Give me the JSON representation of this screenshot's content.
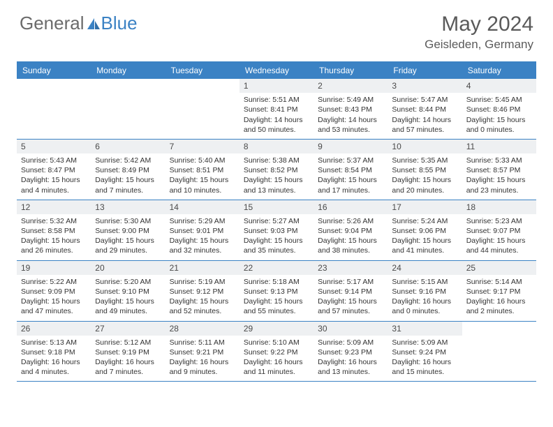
{
  "brand": {
    "part1": "General",
    "part2": "Blue"
  },
  "title": "May 2024",
  "location": "Geisleden, Germany",
  "colors": {
    "accent": "#3b82c4",
    "dayrow_bg": "#eef0f2",
    "text": "#333333",
    "header_text": "#5a5a5a"
  },
  "day_names": [
    "Sunday",
    "Monday",
    "Tuesday",
    "Wednesday",
    "Thursday",
    "Friday",
    "Saturday"
  ],
  "weeks": [
    [
      null,
      null,
      null,
      {
        "n": "1",
        "rise": "5:51 AM",
        "set": "8:41 PM",
        "dl": "14 hours and 50 minutes."
      },
      {
        "n": "2",
        "rise": "5:49 AM",
        "set": "8:43 PM",
        "dl": "14 hours and 53 minutes."
      },
      {
        "n": "3",
        "rise": "5:47 AM",
        "set": "8:44 PM",
        "dl": "14 hours and 57 minutes."
      },
      {
        "n": "4",
        "rise": "5:45 AM",
        "set": "8:46 PM",
        "dl": "15 hours and 0 minutes."
      }
    ],
    [
      {
        "n": "5",
        "rise": "5:43 AM",
        "set": "8:47 PM",
        "dl": "15 hours and 4 minutes."
      },
      {
        "n": "6",
        "rise": "5:42 AM",
        "set": "8:49 PM",
        "dl": "15 hours and 7 minutes."
      },
      {
        "n": "7",
        "rise": "5:40 AM",
        "set": "8:51 PM",
        "dl": "15 hours and 10 minutes."
      },
      {
        "n": "8",
        "rise": "5:38 AM",
        "set": "8:52 PM",
        "dl": "15 hours and 13 minutes."
      },
      {
        "n": "9",
        "rise": "5:37 AM",
        "set": "8:54 PM",
        "dl": "15 hours and 17 minutes."
      },
      {
        "n": "10",
        "rise": "5:35 AM",
        "set": "8:55 PM",
        "dl": "15 hours and 20 minutes."
      },
      {
        "n": "11",
        "rise": "5:33 AM",
        "set": "8:57 PM",
        "dl": "15 hours and 23 minutes."
      }
    ],
    [
      {
        "n": "12",
        "rise": "5:32 AM",
        "set": "8:58 PM",
        "dl": "15 hours and 26 minutes."
      },
      {
        "n": "13",
        "rise": "5:30 AM",
        "set": "9:00 PM",
        "dl": "15 hours and 29 minutes."
      },
      {
        "n": "14",
        "rise": "5:29 AM",
        "set": "9:01 PM",
        "dl": "15 hours and 32 minutes."
      },
      {
        "n": "15",
        "rise": "5:27 AM",
        "set": "9:03 PM",
        "dl": "15 hours and 35 minutes."
      },
      {
        "n": "16",
        "rise": "5:26 AM",
        "set": "9:04 PM",
        "dl": "15 hours and 38 minutes."
      },
      {
        "n": "17",
        "rise": "5:24 AM",
        "set": "9:06 PM",
        "dl": "15 hours and 41 minutes."
      },
      {
        "n": "18",
        "rise": "5:23 AM",
        "set": "9:07 PM",
        "dl": "15 hours and 44 minutes."
      }
    ],
    [
      {
        "n": "19",
        "rise": "5:22 AM",
        "set": "9:09 PM",
        "dl": "15 hours and 47 minutes."
      },
      {
        "n": "20",
        "rise": "5:20 AM",
        "set": "9:10 PM",
        "dl": "15 hours and 49 minutes."
      },
      {
        "n": "21",
        "rise": "5:19 AM",
        "set": "9:12 PM",
        "dl": "15 hours and 52 minutes."
      },
      {
        "n": "22",
        "rise": "5:18 AM",
        "set": "9:13 PM",
        "dl": "15 hours and 55 minutes."
      },
      {
        "n": "23",
        "rise": "5:17 AM",
        "set": "9:14 PM",
        "dl": "15 hours and 57 minutes."
      },
      {
        "n": "24",
        "rise": "5:15 AM",
        "set": "9:16 PM",
        "dl": "16 hours and 0 minutes."
      },
      {
        "n": "25",
        "rise": "5:14 AM",
        "set": "9:17 PM",
        "dl": "16 hours and 2 minutes."
      }
    ],
    [
      {
        "n": "26",
        "rise": "5:13 AM",
        "set": "9:18 PM",
        "dl": "16 hours and 4 minutes."
      },
      {
        "n": "27",
        "rise": "5:12 AM",
        "set": "9:19 PM",
        "dl": "16 hours and 7 minutes."
      },
      {
        "n": "28",
        "rise": "5:11 AM",
        "set": "9:21 PM",
        "dl": "16 hours and 9 minutes."
      },
      {
        "n": "29",
        "rise": "5:10 AM",
        "set": "9:22 PM",
        "dl": "16 hours and 11 minutes."
      },
      {
        "n": "30",
        "rise": "5:09 AM",
        "set": "9:23 PM",
        "dl": "16 hours and 13 minutes."
      },
      {
        "n": "31",
        "rise": "5:09 AM",
        "set": "9:24 PM",
        "dl": "16 hours and 15 minutes."
      },
      null
    ]
  ],
  "labels": {
    "sunrise": "Sunrise:",
    "sunset": "Sunset:",
    "daylight": "Daylight:"
  }
}
